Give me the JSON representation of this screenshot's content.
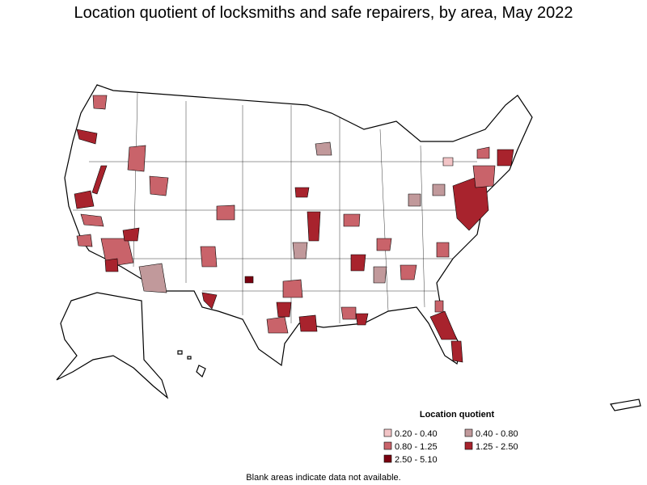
{
  "title": "Location quotient of locksmiths and safe repairers, by area, May 2022",
  "legend": {
    "title": "Location quotient",
    "items": [
      {
        "label": "0.20 - 0.40",
        "color": "#f2c4c6"
      },
      {
        "label": "0.40 - 0.80",
        "color": "#c1999b"
      },
      {
        "label": "0.80 - 1.25",
        "color": "#c9636a"
      },
      {
        "label": "1.25 - 2.50",
        "color": "#a8232d"
      },
      {
        "label": "2.50 - 5.10",
        "color": "#7a0010"
      }
    ]
  },
  "note": "Blank areas indicate data not available."
}
